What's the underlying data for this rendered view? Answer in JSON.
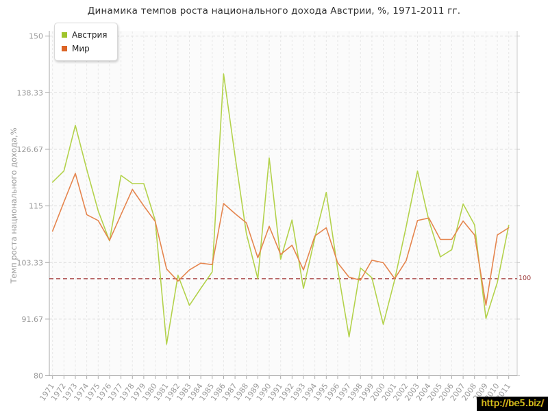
{
  "title": "Динамика темпов роста национального дохода Австрии, %, 1971-2011 гг.",
  "y_axis": {
    "label": "Темп роста национального дохода,%",
    "tick_labels": [
      "150",
      "138.33",
      "126.67",
      "115",
      "103.33",
      "91.67",
      "80"
    ],
    "tick_values": [
      150,
      138.33,
      126.67,
      115,
      103.33,
      91.67,
      80
    ]
  },
  "x_axis": {
    "years": [
      1971,
      1972,
      1973,
      1974,
      1975,
      1976,
      1977,
      1978,
      1979,
      1980,
      1981,
      1982,
      1983,
      1984,
      1985,
      1986,
      1987,
      1988,
      1989,
      1990,
      1991,
      1992,
      1993,
      1994,
      1995,
      1996,
      1997,
      1998,
      1999,
      2000,
      2001,
      2002,
      2003,
      2004,
      2005,
      2006,
      2007,
      2008,
      2009,
      2010,
      2011
    ]
  },
  "legend": [
    {
      "label": "Австрия",
      "color": "#9fc42c"
    },
    {
      "label": "Мир",
      "color": "#dc6426"
    }
  ],
  "reference_line": {
    "value": 100,
    "label": "100",
    "color": "#9e2f2f"
  },
  "watermark": "http://be5.biz/",
  "chart_data": {
    "type": "line",
    "title": "Динамика темпов роста национального дохода Австрии, %, 1971-2011 гг.",
    "xlabel": "",
    "ylabel": "Темп роста национального дохода,%",
    "ylim": [
      80,
      150
    ],
    "yticks": [
      80,
      91.67,
      103.33,
      115,
      126.67,
      138.33,
      150
    ],
    "grid": true,
    "legend_position": "top-left",
    "reference_line": 100,
    "categories": [
      1971,
      1972,
      1973,
      1974,
      1975,
      1976,
      1977,
      1978,
      1979,
      1980,
      1981,
      1982,
      1983,
      1984,
      1985,
      1986,
      1987,
      1988,
      1989,
      1990,
      1991,
      1992,
      1993,
      1994,
      1995,
      1996,
      1997,
      1998,
      1999,
      2000,
      2001,
      2002,
      2003,
      2004,
      2005,
      2006,
      2007,
      2008,
      2009,
      2010,
      2011
    ],
    "series": [
      {
        "name": "Австрия",
        "color": "#b3d24b",
        "values": [
          119.9,
          122.2,
          131.6,
          122.5,
          114.0,
          107.8,
          121.3,
          119.6,
          119.6,
          112.0,
          86.5,
          100.7,
          94.5,
          98.0,
          101.4,
          142.2,
          125.3,
          109.3,
          100.0,
          124.9,
          104.0,
          112.1,
          98.0,
          108.4,
          117.8,
          102.0,
          88.0,
          102.2,
          100.2,
          90.6,
          99.8,
          110.7,
          122.2,
          112.0,
          104.5,
          106.0,
          115.4,
          111.1,
          91.8,
          99.2,
          111.0
        ]
      },
      {
        "name": "Мир",
        "color": "#e5854e",
        "values": [
          109.8,
          115.8,
          121.7,
          113.2,
          112.0,
          107.9,
          113.2,
          118.4,
          115.0,
          111.8,
          102.0,
          99.5,
          101.8,
          103.2,
          102.9,
          115.5,
          113.4,
          111.5,
          104.3,
          110.8,
          105.0,
          106.9,
          101.8,
          108.8,
          110.5,
          103.3,
          100.3,
          99.7,
          103.8,
          103.3,
          100.0,
          103.7,
          112.0,
          112.5,
          108.1,
          108.1,
          111.9,
          109.0,
          94.5,
          109.0,
          110.5
        ]
      }
    ]
  }
}
